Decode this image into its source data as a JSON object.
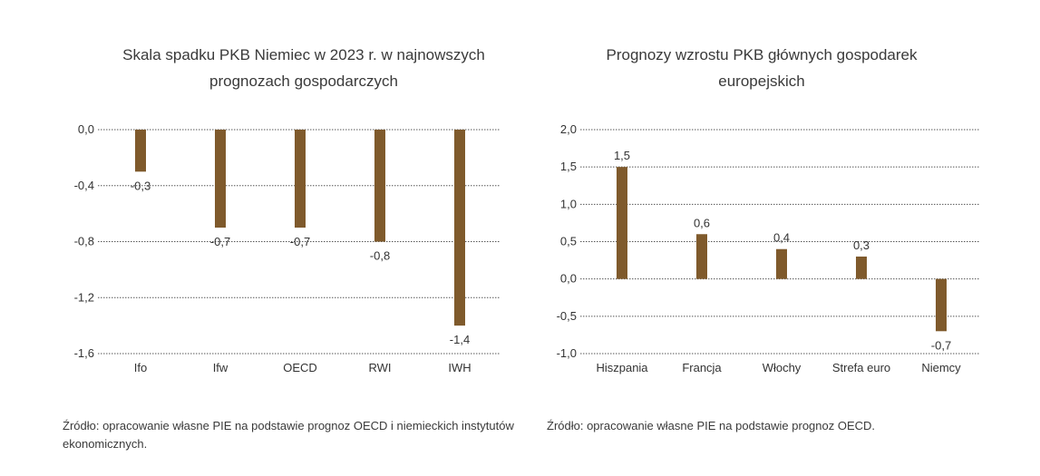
{
  "chart_data": [
    {
      "type": "bar",
      "title_lines": [
        "Skala spadku PKB Niemiec w 2023 r. w najnowszych",
        "prognozach gospodarczych"
      ],
      "categories": [
        "Ifo",
        "Ifw",
        "OECD",
        "RWI",
        "IWH"
      ],
      "values": [
        -0.3,
        -0.7,
        -0.7,
        -0.8,
        -1.4
      ],
      "value_labels": [
        "-0,3",
        "-0,7",
        "-0,7",
        "-0,8",
        "-1,4"
      ],
      "ylim": [
        -1.6,
        0.0
      ],
      "yticks": [
        0.0,
        -0.4,
        -0.8,
        -1.2,
        -1.6
      ],
      "ytick_labels": [
        "0,0",
        "-0,4",
        "-0,8",
        "-1,2",
        "-1,6"
      ],
      "grid": true,
      "legend": "none",
      "color": "#7f5a2c",
      "source": "Źródło: opracowanie własne PIE na podstawie prognoz OECD i niemieckich instytutów ekonomicznych."
    },
    {
      "type": "bar",
      "title_lines": [
        "Prognozy wzrostu PKB głównych gospodarek",
        "europejskich"
      ],
      "categories": [
        "Hiszpania",
        "Francja",
        "Włochy",
        "Strefa euro",
        "Niemcy"
      ],
      "values": [
        1.5,
        0.6,
        0.4,
        0.3,
        -0.7
      ],
      "value_labels": [
        "1,5",
        "0,6",
        "0,4",
        "0,3",
        "-0,7"
      ],
      "ylim": [
        -1.0,
        2.0
      ],
      "yticks": [
        2.0,
        1.5,
        1.0,
        0.5,
        0.0,
        -0.5,
        -1.0
      ],
      "ytick_labels": [
        "2,0",
        "1,5",
        "1,0",
        "0,5",
        "0,0",
        "-0,5",
        "-1,0"
      ],
      "grid": true,
      "legend": "none",
      "color": "#7f5a2c",
      "source": "Źródło: opracowanie własne PIE na podstawie prognoz OECD."
    }
  ]
}
